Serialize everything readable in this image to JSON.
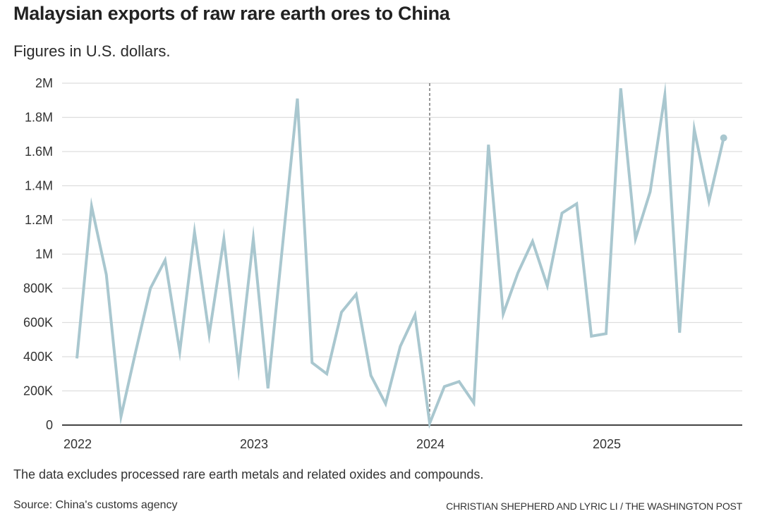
{
  "header": {
    "title": "Malaysian exports of raw rare earth ores to China",
    "subtitle": "Figures in U.S. dollars."
  },
  "footer": {
    "note": "The data excludes processed rare earth metals and related oxides and compounds.",
    "source": "Source: China's customs agency",
    "credit": "CHRISTIAN SHEPHERD AND LYRIC LI / THE WASHINGTON POST"
  },
  "colors": {
    "line": "#a9c7cf",
    "grid": "#dddddd",
    "axis": "#444444",
    "divider": "#555555"
  },
  "chart_data": {
    "type": "line",
    "title": "Malaysian exports of raw rare earth ores to China",
    "subtitle": "Figures in U.S. dollars.",
    "xlabel": "",
    "ylabel": "",
    "ylim": [
      0,
      2000000
    ],
    "grid": true,
    "y_ticks": [
      {
        "value": 0,
        "label": "0"
      },
      {
        "value": 200000,
        "label": "200K"
      },
      {
        "value": 400000,
        "label": "400K"
      },
      {
        "value": 600000,
        "label": "600K"
      },
      {
        "value": 800000,
        "label": "800K"
      },
      {
        "value": 1000000,
        "label": "1M"
      },
      {
        "value": 1200000,
        "label": "1.2M"
      },
      {
        "value": 1400000,
        "label": "1.4M"
      },
      {
        "value": 1600000,
        "label": "1.6M"
      },
      {
        "value": 1800000,
        "label": "1.8M"
      },
      {
        "value": 2000000,
        "label": "2M"
      }
    ],
    "x_ticks": [
      {
        "index": 0,
        "label": "2022"
      },
      {
        "index": 12,
        "label": "2023"
      },
      {
        "index": 24,
        "label": "2024"
      },
      {
        "index": 36,
        "label": "2025"
      }
    ],
    "reference_line": {
      "index": 24,
      "style": "dashed"
    },
    "end_marker": true,
    "series": [
      {
        "name": "Exports (USD)",
        "x": [
          "2022-01",
          "2022-02",
          "2022-03",
          "2022-04",
          "2022-05",
          "2022-06",
          "2022-07",
          "2022-08",
          "2022-09",
          "2022-10",
          "2022-11",
          "2022-12",
          "2023-01",
          "2023-02",
          "2023-03",
          "2023-04",
          "2023-05",
          "2023-06",
          "2023-07",
          "2023-08",
          "2023-09",
          "2023-10",
          "2023-11",
          "2023-12",
          "2024-01",
          "2024-02",
          "2024-03",
          "2024-04",
          "2024-05",
          "2024-06",
          "2024-07",
          "2024-08",
          "2024-09",
          "2024-10",
          "2024-11",
          "2024-12",
          "2025-01",
          "2025-02",
          "2025-03",
          "2025-04",
          "2025-05",
          "2025-06",
          "2025-07",
          "2025-08",
          "2025-09"
        ],
        "values": [
          390000,
          1280000,
          880000,
          50000,
          430000,
          800000,
          965000,
          430000,
          1130000,
          530000,
          1090000,
          330000,
          1090000,
          215000,
          1060000,
          1910000,
          365000,
          300000,
          660000,
          765000,
          290000,
          125000,
          460000,
          645000,
          10000,
          225000,
          255000,
          130000,
          1640000,
          650000,
          890000,
          1075000,
          815000,
          1240000,
          1295000,
          520000,
          535000,
          1970000,
          1090000,
          1365000,
          1930000,
          540000,
          1730000,
          1310000,
          1680000
        ]
      }
    ]
  }
}
